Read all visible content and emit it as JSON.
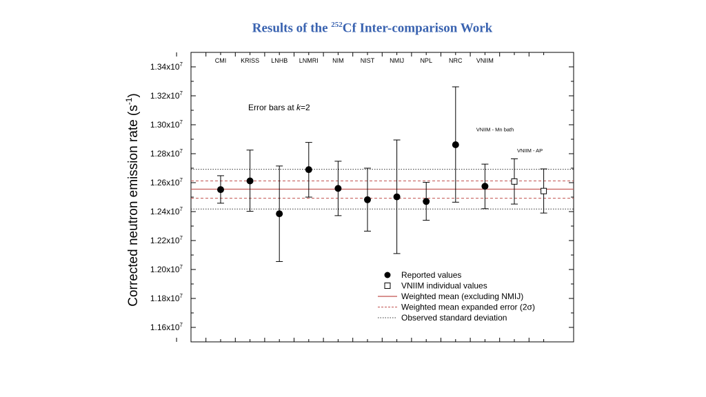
{
  "slide": {
    "title_pre": "Results of the ",
    "title_sup": "252",
    "title_post": "Cf Inter-comparison Work"
  },
  "chart_data": {
    "type": "scatter",
    "title": "",
    "ylabel": "Corrected neutron emission rate (s",
    "ylabel_sup": "-1",
    "ylabel_post": ")",
    "xlabel": "",
    "ylim": [
      11500000.0,
      13500000.0
    ],
    "yticks": [
      {
        "value": 11600000.0,
        "mant": "1.16x10",
        "exp": "7"
      },
      {
        "value": 11800000.0,
        "mant": "1.18x10",
        "exp": "7"
      },
      {
        "value": 12000000.0,
        "mant": "1.20x10",
        "exp": "7"
      },
      {
        "value": 12200000.0,
        "mant": "1.22x10",
        "exp": "7"
      },
      {
        "value": 12400000.0,
        "mant": "1.24x10",
        "exp": "7"
      },
      {
        "value": 12600000.0,
        "mant": "1.26x10",
        "exp": "7"
      },
      {
        "value": 12800000.0,
        "mant": "1.28x10",
        "exp": "7"
      },
      {
        "value": 13000000.0,
        "mant": "1.30x10",
        "exp": "7"
      },
      {
        "value": 13200000.0,
        "mant": "1.32x10",
        "exp": "7"
      },
      {
        "value": 13400000.0,
        "mant": "1.34x10",
        "exp": "7"
      }
    ],
    "annotation_pre": "Error bars at ",
    "annotation_k": "k",
    "annotation_post": "=2",
    "reported": [
      {
        "lab": "CMI",
        "x": 1,
        "y": 12552000.0,
        "low": 12458000.0,
        "high": 12648000.0
      },
      {
        "lab": "KRISS",
        "x": 2,
        "y": 12612000.0,
        "low": 12402000.0,
        "high": 12825000.0
      },
      {
        "lab": "LNHB",
        "x": 3,
        "y": 12385000.0,
        "low": 12055000.0,
        "high": 12715000.0
      },
      {
        "lab": "LNMRI",
        "x": 4,
        "y": 12690000.0,
        "low": 12500000.0,
        "high": 12878000.0
      },
      {
        "lab": "NIM",
        "x": 5,
        "y": 12560000.0,
        "low": 12372000.0,
        "high": 12748000.0
      },
      {
        "lab": "NIST",
        "x": 6,
        "y": 12482000.0,
        "low": 12265000.0,
        "high": 12700000.0
      },
      {
        "lab": "NMIJ",
        "x": 7,
        "y": 12502000.0,
        "low": 12110000.0,
        "high": 12895000.0
      },
      {
        "lab": "NPL",
        "x": 8,
        "y": 12470000.0,
        "low": 12340000.0,
        "high": 12602000.0
      },
      {
        "lab": "NRC",
        "x": 9,
        "y": 12862000.0,
        "low": 12465000.0,
        "high": 13262000.0
      },
      {
        "lab": "VNIIM",
        "x": 10,
        "y": 12575000.0,
        "low": 12420000.0,
        "high": 12728000.0
      }
    ],
    "individual": [
      {
        "label": "VNIIM - Mn bath",
        "x": 11,
        "y": 12608000.0,
        "low": 12452000.0,
        "high": 12765000.0
      },
      {
        "label": "VNIIM - AP",
        "x": 12,
        "y": 12542000.0,
        "low": 12390000.0,
        "high": 12695000.0
      }
    ],
    "weighted_mean": 12555000.0,
    "expanded_error": [
      12492000.0,
      12612000.0
    ],
    "std_deviation": [
      12418000.0,
      12692000.0
    ],
    "legend_position": "bottom-right",
    "legend": [
      {
        "key": "reported",
        "label": "Reported values"
      },
      {
        "key": "individual",
        "label": "VNIIM individual values"
      },
      {
        "key": "mean",
        "label": "Weighted mean (excluding NMIJ)"
      },
      {
        "key": "expanded",
        "label": "Weighted mean expanded error (2σ)"
      },
      {
        "key": "stddev",
        "label": "Observed standard deviation"
      }
    ],
    "colors": {
      "mean": "#c0504d",
      "expanded": "#c0504d",
      "stddev": "#333333",
      "marker": "#000000"
    }
  }
}
